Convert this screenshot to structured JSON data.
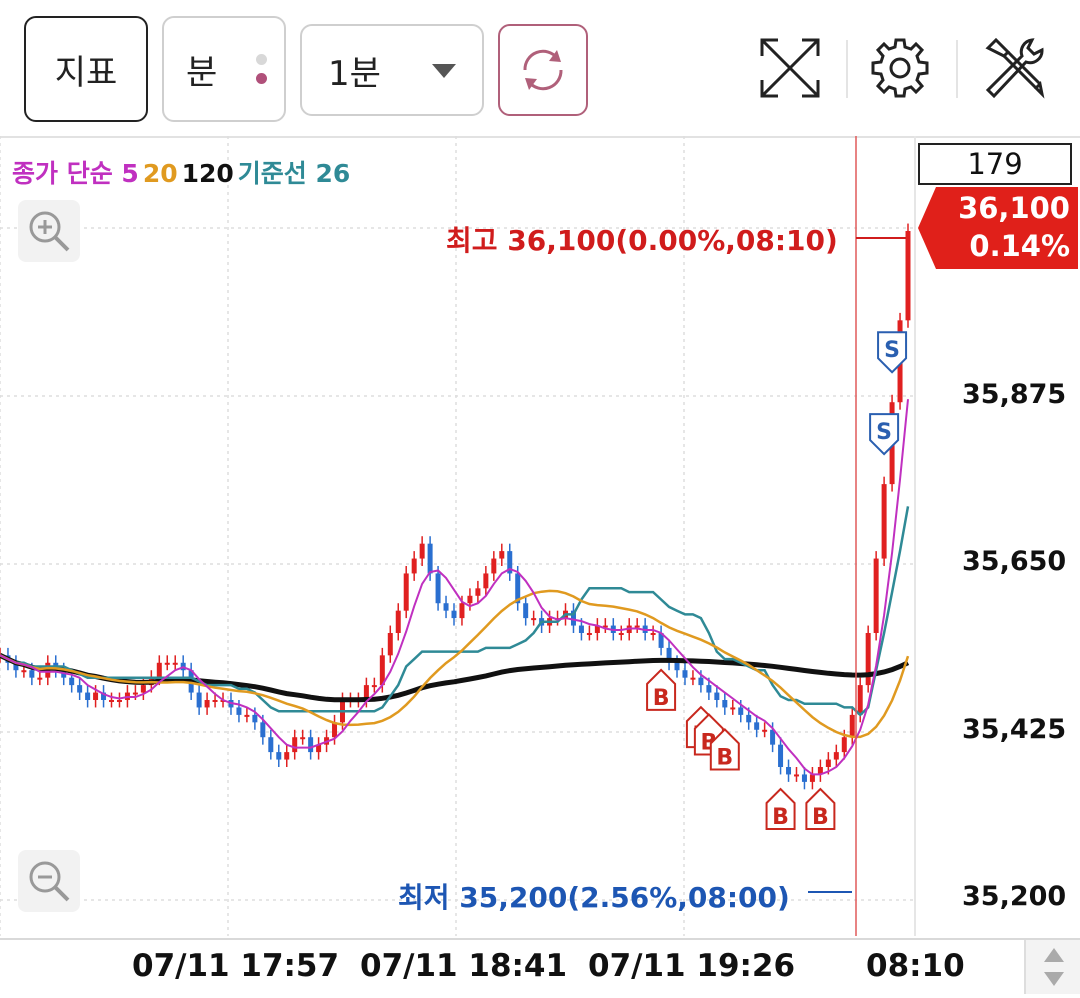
{
  "toolbar": {
    "indicator_label": "지표",
    "unit_label": "분",
    "period_label": "1분",
    "icons": [
      "refresh-icon",
      "expand-icon",
      "gear-icon",
      "tools-icon"
    ]
  },
  "legend": {
    "items": [
      {
        "text": "종가 단순 5",
        "color": "#c030c0"
      },
      {
        "text": "20",
        "color": "#e09a20"
      },
      {
        "text": "120",
        "color": "#111111"
      },
      {
        "text": "기준선 26",
        "color": "#2f8a96"
      }
    ]
  },
  "chart_data": {
    "type": "bar",
    "title": "",
    "y_ticks": [
      "35,875",
      "35,650",
      "35,425",
      "35,200"
    ],
    "y_tick_values": [
      35875,
      35650,
      35425,
      35200
    ],
    "ylim": [
      35170,
      36130
    ],
    "x_ticks": [
      "07/11 17:57",
      "07/11 18:41",
      "07/11 19:26",
      "08:10"
    ],
    "current_volume": "179",
    "current_price": "36,100",
    "current_change": "0.14%",
    "high_label": "최고 36,100(0.00%,08:10)",
    "low_label": "최저 35,200(2.56%,08:00)",
    "colors": {
      "up": "#e02020",
      "down": "#2a6fd0",
      "ma5": "#c030c0",
      "ma20": "#e09a20",
      "ma120": "#111111",
      "base26": "#2f8a96"
    },
    "bars_note": "",
    "close": [
      35530,
      35520,
      35510,
      35510,
      35500,
      35500,
      35520,
      35510,
      35500,
      35490,
      35480,
      35470,
      35480,
      35470,
      35470,
      35470,
      35480,
      35480,
      35490,
      35500,
      35520,
      35520,
      35520,
      35510,
      35480,
      35460,
      35470,
      35470,
      35470,
      35460,
      35450,
      35450,
      35440,
      35420,
      35400,
      35390,
      35400,
      35420,
      35420,
      35400,
      35410,
      35420,
      35440,
      35470,
      35470,
      35470,
      35490,
      35490,
      35530,
      35560,
      35590,
      35640,
      35660,
      35680,
      35640,
      35600,
      35590,
      35580,
      35600,
      35610,
      35620,
      35640,
      35660,
      35670,
      35640,
      35600,
      35580,
      35580,
      35570,
      35580,
      35580,
      35590,
      35570,
      35560,
      35560,
      35570,
      35570,
      35560,
      35560,
      35570,
      35570,
      35560,
      35560,
      35540,
      35520,
      35510,
      35500,
      35500,
      35490,
      35480,
      35470,
      35460,
      35460,
      35450,
      35440,
      35430,
      35430,
      35410,
      35380,
      35370,
      35370,
      35360,
      35370,
      35380,
      35390,
      35400,
      35420,
      35450,
      35490,
      35560,
      35660,
      35760,
      35870,
      35980,
      36100
    ],
    "buy_signal_count": 6,
    "sell_signal_count": 2,
    "signals": [
      {
        "type": "B",
        "index": 83
      },
      {
        "type": "B",
        "index": 88
      },
      {
        "type": "B",
        "index": 89
      },
      {
        "type": "B",
        "index": 91
      },
      {
        "type": "B",
        "index": 98
      },
      {
        "type": "B",
        "index": 103
      },
      {
        "type": "S",
        "index": 111
      },
      {
        "type": "S",
        "index": 112
      }
    ]
  }
}
